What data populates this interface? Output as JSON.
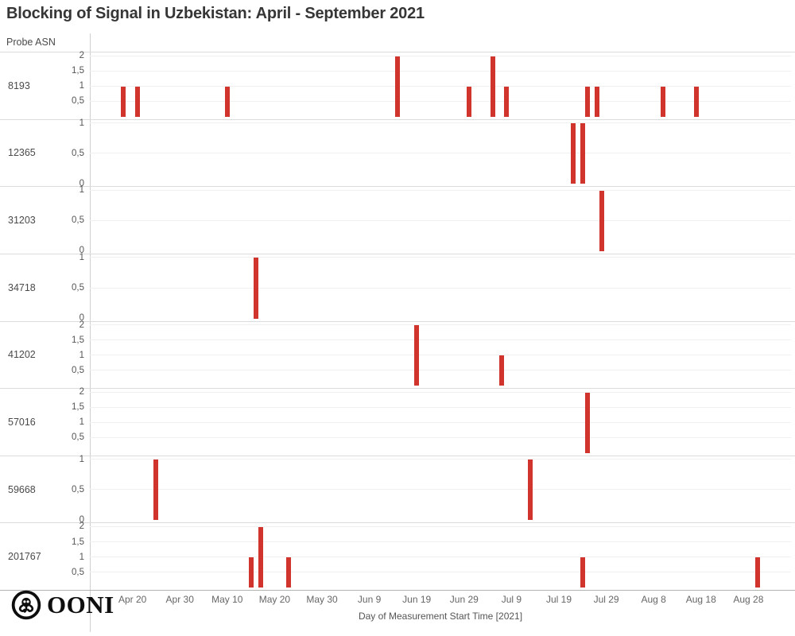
{
  "branding": {
    "logo_text": "OONI"
  },
  "chart_data": {
    "type": "bar",
    "title": "Blocking of Signal in Uzbekistan: April - September 2021",
    "ylabel": "Probe ASN",
    "xlabel": "Day of Measurement Start Time [2021]",
    "bar_color": "#d0342c",
    "decimal_separator": ",",
    "grid": true,
    "legend": "none",
    "x_range": [
      "2021-04-11",
      "2021-09-06"
    ],
    "x_ticks": [
      {
        "label": "Apr 20",
        "date": "2021-04-20"
      },
      {
        "label": "Apr 30",
        "date": "2021-04-30"
      },
      {
        "label": "May 10",
        "date": "2021-05-10"
      },
      {
        "label": "May 20",
        "date": "2021-05-20"
      },
      {
        "label": "May 30",
        "date": "2021-05-30"
      },
      {
        "label": "Jun 9",
        "date": "2021-06-09"
      },
      {
        "label": "Jun 19",
        "date": "2021-06-19"
      },
      {
        "label": "Jun 29",
        "date": "2021-06-29"
      },
      {
        "label": "Jul 9",
        "date": "2021-07-09"
      },
      {
        "label": "Jul 19",
        "date": "2021-07-19"
      },
      {
        "label": "Jul 29",
        "date": "2021-07-29"
      },
      {
        "label": "Aug 8",
        "date": "2021-08-08"
      },
      {
        "label": "Aug 18",
        "date": "2021-08-18"
      },
      {
        "label": "Aug 28",
        "date": "2021-08-28"
      }
    ],
    "rows": [
      {
        "asn": "8193",
        "ymax": 2,
        "yticks": [
          2,
          1.5,
          1,
          0.5
        ],
        "bars": [
          {
            "date": "2021-04-18",
            "value": 1
          },
          {
            "date": "2021-04-21",
            "value": 1
          },
          {
            "date": "2021-05-10",
            "value": 1
          },
          {
            "date": "2021-06-15",
            "value": 2
          },
          {
            "date": "2021-06-30",
            "value": 1
          },
          {
            "date": "2021-07-05",
            "value": 2
          },
          {
            "date": "2021-07-08",
            "value": 1
          },
          {
            "date": "2021-07-25",
            "value": 1
          },
          {
            "date": "2021-07-27",
            "value": 1
          },
          {
            "date": "2021-08-10",
            "value": 1
          },
          {
            "date": "2021-08-17",
            "value": 1
          }
        ]
      },
      {
        "asn": "12365",
        "ymax": 1,
        "yticks": [
          1,
          0.5,
          0
        ],
        "bars": [
          {
            "date": "2021-07-22",
            "value": 1
          },
          {
            "date": "2021-07-24",
            "value": 1
          }
        ]
      },
      {
        "asn": "31203",
        "ymax": 1,
        "yticks": [
          1,
          0.5,
          0
        ],
        "bars": [
          {
            "date": "2021-07-28",
            "value": 1
          }
        ]
      },
      {
        "asn": "34718",
        "ymax": 1,
        "yticks": [
          1,
          0.5,
          0
        ],
        "bars": [
          {
            "date": "2021-05-16",
            "value": 1
          }
        ]
      },
      {
        "asn": "41202",
        "ymax": 2,
        "yticks": [
          2,
          1.5,
          1,
          0.5
        ],
        "bars": [
          {
            "date": "2021-06-19",
            "value": 2
          },
          {
            "date": "2021-07-07",
            "value": 1
          }
        ]
      },
      {
        "asn": "57016",
        "ymax": 2,
        "yticks": [
          2,
          1.5,
          1,
          0.5
        ],
        "bars": [
          {
            "date": "2021-07-25",
            "value": 2
          }
        ]
      },
      {
        "asn": "59668",
        "ymax": 1,
        "yticks": [
          1,
          0.5,
          0
        ],
        "bars": [
          {
            "date": "2021-04-25",
            "value": 1
          },
          {
            "date": "2021-07-13",
            "value": 1
          }
        ]
      },
      {
        "asn": "201767",
        "ymax": 2,
        "yticks": [
          2,
          1.5,
          1,
          0.5
        ],
        "bars": [
          {
            "date": "2021-05-15",
            "value": 1
          },
          {
            "date": "2021-05-17",
            "value": 2
          },
          {
            "date": "2021-05-23",
            "value": 1
          },
          {
            "date": "2021-07-24",
            "value": 1
          },
          {
            "date": "2021-08-30",
            "value": 1
          }
        ]
      }
    ]
  }
}
